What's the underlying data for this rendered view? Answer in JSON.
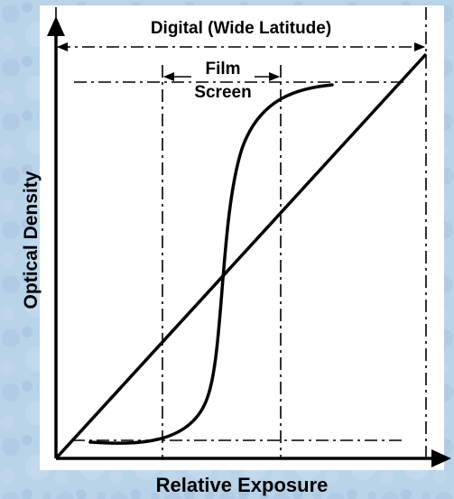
{
  "background_color": "#b9d3e8",
  "panel_color": "#ffffff",
  "ink_color": "#000000",
  "labels": {
    "digital_range": "Digital (Wide Latitude)",
    "film_line1": "Film",
    "film_line2": "Screen",
    "y_axis": "Optical Density",
    "x_axis": "Relative Exposure"
  },
  "curves": [
    {
      "name": "film-screen",
      "shape": "sigmoid"
    },
    {
      "name": "digital",
      "shape": "linear"
    }
  ]
}
